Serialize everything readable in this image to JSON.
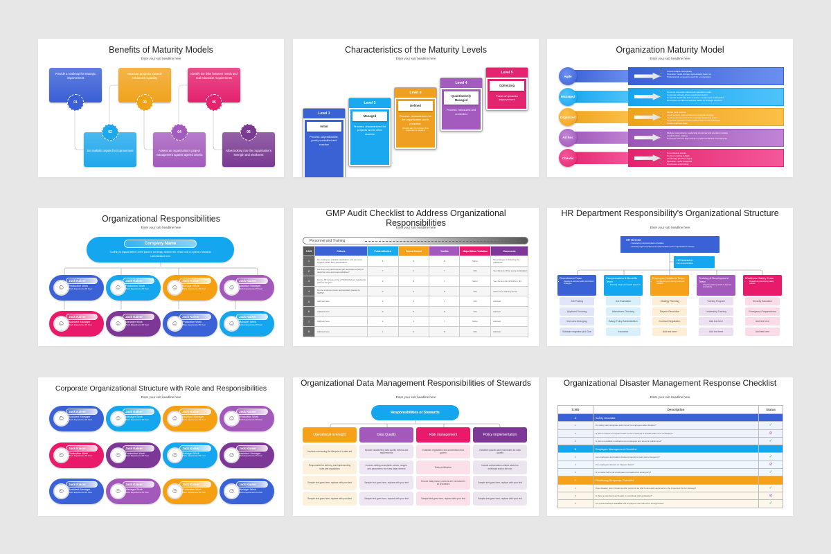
{
  "page": {
    "background": "#e8e7e8"
  },
  "slides": {
    "s1": {
      "title": "Benefits of Maturity Models",
      "subtitle": "Enter your sub headline here",
      "cards": [
        {
          "num": "01",
          "text": "Provide a roadmap for strategic improvement",
          "color": "#3a5fd6"
        },
        {
          "num": "02",
          "text": "Set realistic targets for improvement",
          "color": "#1fa7ec"
        },
        {
          "num": "03",
          "text": "Measure progress towards enhanced capability",
          "color": "#f0a21b"
        },
        {
          "num": "04",
          "text": "Assess an organization's project management against agreed criteria",
          "color": "#a35bbd"
        },
        {
          "num": "05",
          "text": "Identify the links between needs and real education requirements",
          "color": "#e4226e"
        },
        {
          "num": "06",
          "text": "Allow looking into the organization's strength and weakness",
          "color": "#7a3a92"
        }
      ]
    },
    "s2": {
      "title": "Characteristics of the Maturity Levels",
      "subtitle": "Enter your sub headline here",
      "levels": [
        {
          "label": "Level 1",
          "name": "Initial",
          "desc": "Process: unpredictable, poorly controlled and reactive",
          "note": "",
          "color": "#3a62d4"
        },
        {
          "label": "Level 2",
          "name": "Managed",
          "desc": "Process: characterized for projects and is often reactive",
          "note": "",
          "color": "#1aa8ef"
        },
        {
          "label": "Level 3",
          "name": "Defined",
          "desc": "Process: characterized for the organization and is proactive.",
          "note": "(Projects tailor their process from organization's standard)",
          "color": "#f0a020"
        },
        {
          "label": "Level 4",
          "name": "Quantitatively Managed",
          "desc": "Process: measured and controlled",
          "note": "",
          "color": "#a35bbd"
        },
        {
          "label": "Level 5",
          "name": "Optimizing",
          "desc": "Focus on process improvement",
          "note": "",
          "color": "#e3256f"
        }
      ]
    },
    "s3": {
      "title": "Organization Maturity Model",
      "subtitle": "Enter your sub headline here",
      "rows": [
        {
          "label": "Agile",
          "color": "#3a5fd6",
          "light": "#6b8ff0",
          "items": [
            "Culture adapts strategically",
            "Operation model changes dynamically based on",
            "Professionals compete to work for a corporation"
          ]
        },
        {
          "label": "Managed",
          "color": "#15a4ee",
          "light": "#4fc3fb",
          "items": [
            "Common corporate culture and operation model",
            "Corporate strategy drives operational tactics",
            "Corporate leadership team coaches & empowers local leaders",
            "Employees recruited & retained based on strategic direction"
          ]
        },
        {
          "label": "Organized",
          "color": "#eea21d",
          "light": "#fcc048",
          "items": [
            "Similar local cultures",
            "Local decision making based on corporate strategy",
            "Local leadership hired to fit corporate leadership team",
            "Corporate operation model pushed down to the local level",
            "Stable employee base"
          ]
        },
        {
          "label": "Ad hoc",
          "color": "#9a55b6",
          "light": "#c184d4",
          "items": [
            "Multiple local cultures; leadership structures and operation models",
            "Local decision making",
            "Employee turnover high except in preferred classes of employees"
          ]
        },
        {
          "label": "Chaotic",
          "color": "#e2246d",
          "light": "#f4589a",
          "items": [
            "Non-cohesive culture",
            "Decision making in-flight",
            "Leadership structure vague",
            "Operation model undefined",
            "Employees evaporating"
          ]
        }
      ]
    },
    "s4": {
      "title": "Organizational Responsibilities",
      "subtitle": "Enter your sub headline here",
      "company": {
        "name": "Company Name",
        "desc": "Contrary to popular belief, Lorem Ipsum is not simply random text. It has roots in a piece of classical Latin literature from"
      },
      "people": [
        {
          "name": "Jack Kaiser",
          "role": "Production Work",
          "exp": "Work Experience 05 Year",
          "color": "#3a62d6"
        },
        {
          "name": "Jack Kaiser",
          "role": "Production Work",
          "exp": "Work Experience 05 Year",
          "color": "#14a6ee"
        },
        {
          "name": "Jack Kaiser",
          "role": "Manager Work",
          "exp": "Work Experience 05 Year",
          "color": "#f4a012"
        },
        {
          "name": "Jack Kaiser",
          "role": "Assistant Manager",
          "exp": "Work Experience 05 Year",
          "color": "#a358bb"
        },
        {
          "name": "Jack Kaiser",
          "role": "Assistant Manager",
          "exp": "Work Experience 05 Year",
          "color": "#ea1a6a"
        },
        {
          "name": "Jack Kaiser",
          "role": "Manager Work",
          "exp": "Work Experience 05 Year",
          "color": "#7d3796"
        },
        {
          "name": "Jack Kaiser",
          "role": "Production Work",
          "exp": "Work Experience 05 Year",
          "color": "#3a62d6"
        },
        {
          "name": "Jack Kaiser",
          "role": "Manager Work",
          "exp": "Work Experience 05 Year",
          "color": "#14a6ee"
        }
      ]
    },
    "s5": {
      "title": "GMP Audit Checklist to Address Organizational Responsibilities",
      "subtitle": "Enter your sub headline here",
      "banner": "Personnel and Training",
      "headers": [
        {
          "label": "S.NO",
          "color": "#555555"
        },
        {
          "label": "Criteria",
          "color": "#3a62d6"
        },
        {
          "label": "Points Allotted",
          "color": "#18a9ef"
        },
        {
          "label": "Points Earned",
          "color": "#f6a11a"
        },
        {
          "label": "Yes/No",
          "color": "#a358bb"
        },
        {
          "label": "Major/Minor Violation",
          "color": "#e91a6d"
        },
        {
          "label": "Comments",
          "color": "#7d3796"
        }
      ],
      "rows": [
        [
          "1",
          "Do employees practice sanitization and personal hygiene within their workstation?",
          "6",
          "9",
          "N",
          "Minor",
          "No employee is following the guidelines"
        ],
        [
          "2",
          "Are there any documented job descriptions (JD) to describe roles and responsibilities?",
          "7",
          "2",
          "Y",
          "N/A",
          "Yes, there is JD on every workstation"
        ],
        [
          "3",
          "Do the JD includes a list of SOPs that are required to perform the job?",
          "2",
          "6",
          "Y",
          "Minor",
          "Yes, there is list of SOPs in JD"
        ],
        [
          "4",
          "Do the employee been appropriately trained to GMPs?",
          "0",
          "4",
          "N",
          "N/A",
          "There is no training record"
        ],
        [
          "5",
          "Add text here",
          "3",
          "2",
          "Y",
          "N/A",
          "Add text"
        ],
        [
          "6",
          "Add text here",
          "0",
          "5",
          "N",
          "N/A",
          "Add text"
        ],
        [
          "7",
          "Add text here",
          "2",
          "1",
          "Y",
          "Minor",
          "Add text"
        ],
        [
          "8",
          "Add text here",
          "1",
          "9",
          "N",
          "N/A",
          "Add text"
        ]
      ]
    },
    "s6": {
      "title": "HR Department Responsibility's Organizational Structure",
      "subtitle": "Enter your sub headline here",
      "director": {
        "title": "HR Director",
        "items": [
          "Developing corporate plans & policies",
          "Ensuring legal compliance & implementation of the organization's mission"
        ]
      },
      "assistant": {
        "title": "HR Assistant",
        "desc": "Key responsibilities"
      },
      "teams": [
        {
          "title": "Recruitment Team",
          "items": [
            "Develop & execute quality recruitment strategies"
          ],
          "color": "#3a62d6",
          "light": "#dfe6fa",
          "tasks": [
            "Job Posting",
            "Applicant Sourcing",
            "Interview Arranging",
            "Software engineer jack Doe"
          ]
        },
        {
          "title": "Compensation & Benefits Team",
          "items": [
            "Ensuring wages and reward programs"
          ],
          "color": "#14a6ee",
          "light": "#d8effc",
          "tasks": [
            "Job Evaluation",
            "Attendance Checking",
            "Salary Policy Administration",
            "Insurance"
          ]
        },
        {
          "title": "Employee Relations Team",
          "items": [
            "Investigating and solving employee conflicts"
          ],
          "color": "#f6a11a",
          "light": "#fdeed5",
          "tasks": [
            "Strategy Planning",
            "Dispute Resolution",
            "Contract Negotiation",
            "Add text here"
          ]
        },
        {
          "title": "Training & Development Team",
          "items": [
            "Analyzing training needs to improve productivity"
          ],
          "color": "#a358bb",
          "light": "#eee0f3",
          "tasks": [
            "Training Program",
            "Leadership Training",
            "Add text here",
            "Add text here"
          ]
        },
        {
          "title": "Workforce Safety Team",
          "items": [
            "Researching developing safety policies"
          ],
          "color": "#ea1a6a",
          "light": "#fbdbe8",
          "tasks": [
            "Security Education",
            "Emergency Preparedness",
            "Add text here",
            "Add text here"
          ]
        }
      ]
    },
    "s7": {
      "title": "Corporate Organizational Structure with Role and Responsibilities",
      "subtitle": "Enter your sub headline here",
      "people": [
        {
          "name": "Jack Kaiser",
          "role": "Assistant Manager",
          "exp": "Work Experience 05 Year",
          "color": "#3a62d6"
        },
        {
          "name": "Jack Kaiser",
          "role": "Manager Work",
          "exp": "Work Experience 05 Year",
          "color": "#14a6ee"
        },
        {
          "name": "Jack Kaiser",
          "role": "Assistant Manager",
          "exp": "Work Experience 05 Year",
          "color": "#f4a012"
        },
        {
          "name": "Jack Kaiser",
          "role": "Production Work",
          "exp": "Work Experience 05 Year",
          "color": "#a358bb"
        },
        {
          "name": "Jack Kaiser",
          "role": "Production Work",
          "exp": "Work Experience 05 Year",
          "color": "#ea1a6a"
        },
        {
          "name": "Jack Kaiser",
          "role": "Production Work",
          "exp": "Work Experience 05 Year",
          "color": "#7d3796"
        },
        {
          "name": "Jack Kaiser",
          "role": "Manager Work",
          "exp": "Work Experience 05 Year",
          "color": "#14a6ee"
        },
        {
          "name": "Jack Kaiser",
          "role": "Assistant Manager",
          "exp": "Work Experience 05 Year",
          "color": "#7d3796"
        },
        {
          "name": "Jack Kaiser",
          "role": "Assistant Manager",
          "exp": "Work Experience 05 Year",
          "color": "#3a62d6"
        },
        {
          "name": "Jack Kaiser",
          "role": "Manager Work",
          "exp": "Work Experience 05 Year",
          "color": "#a358bb"
        },
        {
          "name": "Jack Kaiser",
          "role": "Production Work",
          "exp": "Work Experience 05 Year",
          "color": "#f4a012"
        },
        {
          "name": "Jack Kaiser",
          "role": "Manager Work",
          "exp": "Work Experience 05 Year",
          "color": "#3a62d6"
        }
      ]
    },
    "s8": {
      "title": "Organizational Data Management Responsibilities of Stewards",
      "subtitle": "Enter your sub headline here",
      "root": "Responsibilities of Stewards",
      "columns": [
        {
          "title": "Operational oversight",
          "color": "#f6a11a",
          "light": "#fdf0dc",
          "cells": [
            "Involves overseeing the lifecycle of a data set",
            "Responsible for defining and implementing rules and regulations",
            "Sample text goes here, replace with your text",
            "Sample text goes here, replace with your text"
          ]
        },
        {
          "title": "Data Quality",
          "color": "#a358bb",
          "light": "#efe6f4",
          "cells": [
            "Include establishing data quality metrics and requirements",
            "Involves setting acceptable values, ranges, and parameters for every data element",
            "Sample text goes here, replace with your text",
            "Sample text goes here, replace with your text"
          ]
        },
        {
          "title": "Risk management",
          "color": "#ea1a6a",
          "light": "#fbe0ea",
          "cells": [
            "Establish regulations and conventions that govern",
            "Data proliferation",
            "Ensure data privacy controls are exercised in all processes",
            "Sample text goes here, replace with your text"
          ]
        },
        {
          "title": "Policy implementation",
          "color": "#7d3796",
          "light": "#ece5f0",
          "cells": [
            "Establish policies and procedures for data access",
            "Include authorization criteria based on individual and/or the role",
            "Sample text goes here, replace with your text",
            "Sample text goes here, replace with your text"
          ]
        }
      ]
    },
    "s9": {
      "title": "Organizational Disaster Management Response Checklist",
      "subtitle": "Enter your sub headline here",
      "headers": [
        "S.NO",
        "Description",
        "Status"
      ],
      "sections": [
        {
          "id": "A",
          "title": "Safety Checklist",
          "color": "#3a62d6",
          "rowbg": "#eef2fb",
          "rows": [
            {
              "n": "1",
              "d": "Do safety plan designate safe zones for employees after disaster?",
              "s": "done"
            },
            {
              "n": "2",
              "d": "Is plan is tested on frequent basis so the employee is familiar with event of disaster?",
              "s": "pending"
            },
            {
              "n": "3",
              "d": "Is plan is available in advance too employees and stored in public area?",
              "s": "done"
            }
          ]
        },
        {
          "id": "B",
          "title": "Employee Management Checklist",
          "color": "#14a6ee",
          "rowbg": "#edf7fd",
          "rows": [
            {
              "n": "1",
              "d": "Are employees and leaders trained properly to react post emergency?",
              "s": "done"
            },
            {
              "n": "2",
              "d": "Are employees trained on frequent basis?",
              "s": "pending"
            },
            {
              "n": "3",
              "d": "Is a master list for all employees is prepared for emergency?",
              "s": "done"
            }
          ]
        },
        {
          "id": "C",
          "title": "Prioritizing Response Checklist",
          "color": "#f6a11a",
          "rowbg": "#fdf6ea",
          "rows": [
            {
              "n": "1",
              "d": "Does disaster plan include specific protocols as which sites and equipments to be inspected first for damage?",
              "s": "done"
            },
            {
              "n": "2",
              "d": "Is there a selected team leader to coordinate during disaster?",
              "s": "pending"
            },
            {
              "n": "3",
              "d": "Are power backups available and employees are trained for emergencies?",
              "s": "done"
            }
          ]
        }
      ],
      "status_icons": {
        "done": "✓",
        "pending": "⊘"
      },
      "status_colors": {
        "done": "#3cb96a",
        "pending": "#b35cc4"
      }
    }
  }
}
